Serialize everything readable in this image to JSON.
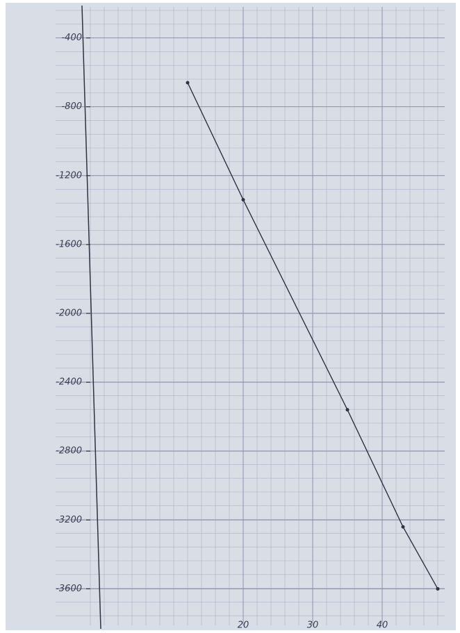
{
  "chart_data": {
    "type": "line",
    "x": [
      12,
      20,
      35,
      43,
      48
    ],
    "series": [
      {
        "color": "#2d3340",
        "values": [
          -660,
          -1340,
          -2560,
          -3240,
          -3600
        ]
      }
    ],
    "xlim": [
      -2,
      50
    ],
    "xticks": [
      20,
      30,
      40
    ],
    "ylim": [
      -3800,
      -200
    ],
    "yticks": [
      -400,
      -800,
      -1200,
      -1600,
      -2000,
      -2400,
      -2800,
      -3200,
      -3600
    ],
    "grid": true
  }
}
